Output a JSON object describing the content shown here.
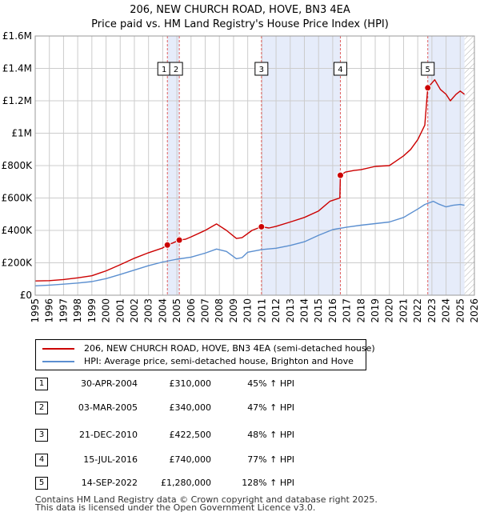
{
  "title": {
    "line1": "206, NEW CHURCH ROAD, HOVE, BN3 4EA",
    "line2": "Price paid vs. HM Land Registry's House Price Index (HPI)"
  },
  "colors": {
    "price": "#cc0000",
    "hpi": "#5b8fd0",
    "shade": "#e6ecfa",
    "marker_line": "#e06060",
    "grid": "#cccccc"
  },
  "chart_data": {
    "type": "line",
    "title": "Price paid vs. HM Land Registry's House Price Index (HPI)",
    "xlabel": "",
    "ylabel": "",
    "xlim": [
      1995,
      2026
    ],
    "ylim": [
      0,
      1600000
    ],
    "x_ticks": [
      "1995",
      "1996",
      "1997",
      "1998",
      "1999",
      "2000",
      "2001",
      "2002",
      "2003",
      "2004",
      "2005",
      "2006",
      "2007",
      "2008",
      "2009",
      "2010",
      "2011",
      "2012",
      "2013",
      "2014",
      "2015",
      "2016",
      "2017",
      "2018",
      "2019",
      "2020",
      "2021",
      "2022",
      "2023",
      "2024",
      "2025",
      "2026"
    ],
    "y_ticks": [
      {
        "value": 0,
        "label": "£0"
      },
      {
        "value": 200000,
        "label": "£200K"
      },
      {
        "value": 400000,
        "label": "£400K"
      },
      {
        "value": 600000,
        "label": "£600K"
      },
      {
        "value": 800000,
        "label": "£800K"
      },
      {
        "value": 1000000,
        "label": "£1M"
      },
      {
        "value": 1200000,
        "label": "£1.2M"
      },
      {
        "value": 1400000,
        "label": "£1.4M"
      },
      {
        "value": 1600000,
        "label": "£1.6M"
      }
    ],
    "grid": true,
    "shaded_periods": [
      [
        2004.33,
        2005.17
      ],
      [
        2010.97,
        2016.54
      ],
      [
        2022.71,
        2025.3
      ]
    ],
    "hatched_from": 2025.3,
    "series": [
      {
        "name": "206, NEW CHURCH ROAD, HOVE, BN3 4EA (semi-detached house)",
        "color": "#cc0000",
        "x": [
          1995,
          1996,
          1997,
          1998,
          1999,
          2000,
          2001,
          2002,
          2003,
          2004,
          2004.33,
          2004.7,
          2005.17,
          2005.6,
          2006,
          2007,
          2007.8,
          2008.5,
          2009.2,
          2009.6,
          2010.3,
          2010.97,
          2011.5,
          2012,
          2013,
          2014,
          2015,
          2015.8,
          2016.5,
          2016.54,
          2016.9,
          2017.5,
          2018,
          2019,
          2020,
          2020.5,
          2021,
          2021.5,
          2022,
          2022.5,
          2022.71,
          2022.9,
          2023.2,
          2023.6,
          2024,
          2024.3,
          2024.7,
          2025,
          2025.3
        ],
        "y": [
          88000,
          90000,
          97000,
          107000,
          120000,
          150000,
          188000,
          228000,
          262000,
          292000,
          310000,
          322000,
          340000,
          345000,
          360000,
          400000,
          440000,
          400000,
          350000,
          355000,
          400000,
          422500,
          415000,
          425000,
          452000,
          480000,
          520000,
          580000,
          600000,
          740000,
          760000,
          770000,
          775000,
          795000,
          800000,
          830000,
          860000,
          900000,
          960000,
          1050000,
          1280000,
          1300000,
          1330000,
          1270000,
          1240000,
          1200000,
          1240000,
          1260000,
          1240000
        ]
      },
      {
        "name": "HPI: Average price, semi-detached house, Brighton and Hove",
        "color": "#5b8fd0",
        "x": [
          1995,
          1996,
          1997,
          1998,
          1999,
          2000,
          2001,
          2002,
          2003,
          2004,
          2005,
          2006,
          2007,
          2007.8,
          2008.5,
          2009.2,
          2009.6,
          2010,
          2011,
          2012,
          2013,
          2014,
          2015,
          2016,
          2017,
          2018,
          2019,
          2020,
          2021,
          2022,
          2022.5,
          2022.8,
          2023.1,
          2023.5,
          2024,
          2024.5,
          2025,
          2025.3
        ],
        "y": [
          58000,
          62000,
          68000,
          75000,
          84000,
          102000,
          128000,
          155000,
          182000,
          205000,
          222000,
          235000,
          260000,
          285000,
          270000,
          225000,
          232000,
          265000,
          282000,
          290000,
          307000,
          330000,
          370000,
          405000,
          420000,
          432000,
          442000,
          452000,
          480000,
          532000,
          560000,
          570000,
          580000,
          562000,
          545000,
          555000,
          560000,
          555000
        ]
      }
    ],
    "sales": [
      {
        "id": "1",
        "x": 2004.33,
        "value": 310000
      },
      {
        "id": "2",
        "x": 2005.17,
        "value": 340000
      },
      {
        "id": "3",
        "x": 2010.97,
        "value": 422500
      },
      {
        "id": "4",
        "x": 2016.54,
        "value": 740000
      },
      {
        "id": "5",
        "x": 2022.71,
        "value": 1280000
      }
    ]
  },
  "legend": {
    "items": [
      {
        "label": "206, NEW CHURCH ROAD, HOVE, BN3 4EA (semi-detached house)",
        "color": "#cc0000"
      },
      {
        "label": "HPI: Average price, semi-detached house, Brighton and Hove",
        "color": "#5b8fd0"
      }
    ]
  },
  "transactions": [
    {
      "num": "1",
      "date": "30-APR-2004",
      "price": "£310,000",
      "hpi": "45% ↑ HPI"
    },
    {
      "num": "2",
      "date": "03-MAR-2005",
      "price": "£340,000",
      "hpi": "47% ↑ HPI"
    },
    {
      "num": "3",
      "date": "21-DEC-2010",
      "price": "£422,500",
      "hpi": "48% ↑ HPI"
    },
    {
      "num": "4",
      "date": "15-JUL-2016",
      "price": "£740,000",
      "hpi": "77% ↑ HPI"
    },
    {
      "num": "5",
      "date": "14-SEP-2022",
      "price": "£1,280,000",
      "hpi": "128% ↑ HPI"
    }
  ],
  "footer": {
    "line1": "Contains HM Land Registry data © Crown copyright and database right 2025.",
    "line2": "This data is licensed under the Open Government Licence v3.0."
  }
}
